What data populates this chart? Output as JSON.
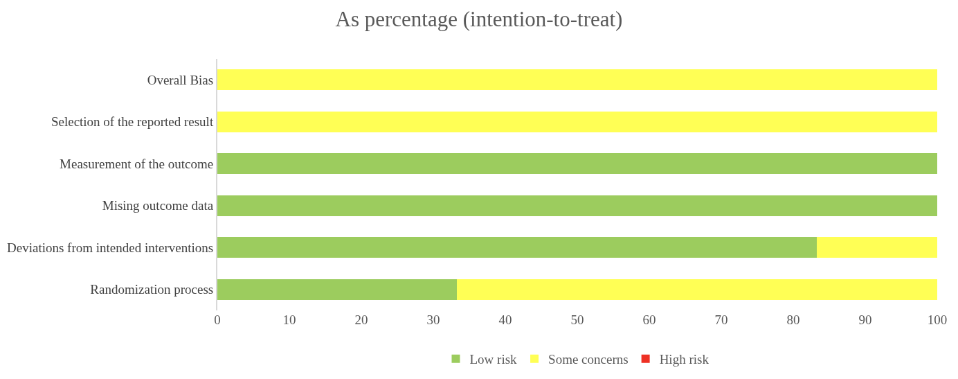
{
  "chart_data": {
    "type": "bar",
    "orientation": "horizontal",
    "stacked": true,
    "title": "As percentage (intention-to-treat)",
    "categories": [
      "Overall Bias",
      "Selection of the reported result",
      "Measurement of the outcome",
      "Mising outcome data",
      "Deviations from intended interventions",
      "Randomization process"
    ],
    "series": [
      {
        "name": "Low risk",
        "color": "#9ccc5e",
        "values": [
          0,
          0,
          100,
          100,
          83.3,
          33.3
        ]
      },
      {
        "name": "Some concerns",
        "color": "#ffff55",
        "values": [
          100,
          100,
          0,
          0,
          16.7,
          66.7
        ]
      },
      {
        "name": "High risk",
        "color": "#ee3124",
        "values": [
          0,
          0,
          0,
          0,
          0,
          0
        ]
      }
    ],
    "xlim": [
      0,
      100
    ],
    "xticks": [
      0,
      10,
      20,
      30,
      40,
      50,
      60,
      70,
      80,
      90,
      100
    ],
    "legend": "bottom"
  }
}
